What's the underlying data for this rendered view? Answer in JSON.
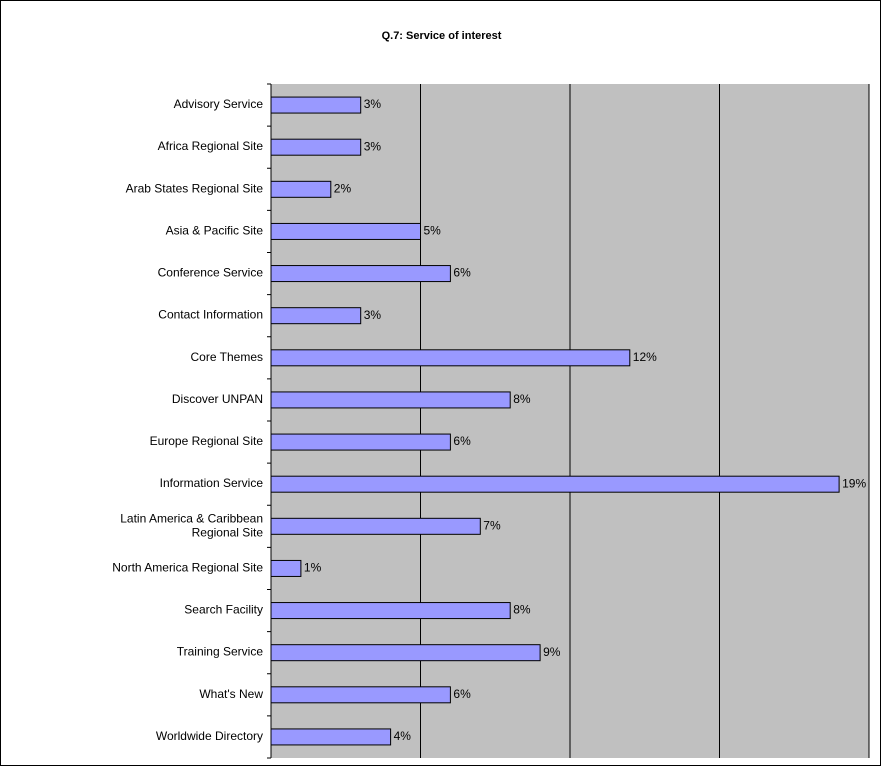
{
  "chart_data": {
    "type": "bar",
    "orientation": "horizontal",
    "title": "Q.7: Service of interest",
    "categories": [
      "Advisory Service",
      "Africa Regional Site",
      "Arab States Regional Site",
      "Asia & Pacific Site",
      "Conference Service",
      "Contact Information",
      "Core Themes",
      "Discover UNPAN",
      "Europe Regional Site",
      "Information Service",
      "Latin America & Caribbean\nRegional Site",
      "North America Regional Site",
      "Search Facility",
      "Training Service",
      "What's New",
      "Worldwide Directory"
    ],
    "values": [
      3,
      3,
      2,
      5,
      6,
      3,
      12,
      8,
      6,
      19,
      7,
      1,
      8,
      9,
      6,
      4
    ],
    "value_labels": [
      "3%",
      "3%",
      "2%",
      "5%",
      "6%",
      "3%",
      "12%",
      "8%",
      "6%",
      "19%",
      "7%",
      "1%",
      "8%",
      "9%",
      "6%",
      "4%"
    ],
    "xlim": [
      0,
      20
    ],
    "grid": true,
    "colors": {
      "bar": "#9999ff",
      "plot_background": "#c0c0c0"
    }
  }
}
